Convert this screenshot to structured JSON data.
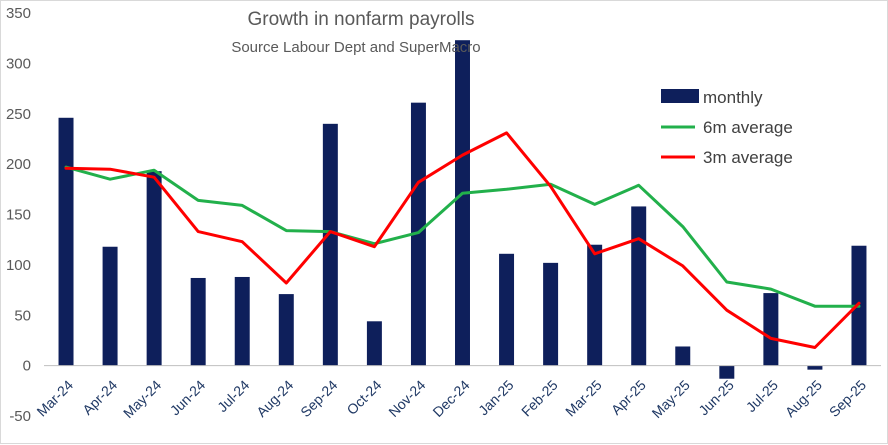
{
  "chart_data": {
    "type": "bar",
    "title": "Growth in nonfarm payrolls",
    "subtitle": "Source Labour Dept and SuperMacro",
    "categories": [
      "Mar-24",
      "Apr-24",
      "May-24",
      "Jun-24",
      "Jul-24",
      "Aug-24",
      "Sep-24",
      "Oct-24",
      "Nov-24",
      "Dec-24",
      "Jan-25",
      "Feb-25",
      "Mar-25",
      "Apr-25",
      "May-25",
      "Jun-25",
      "Jul-25",
      "Aug-25",
      "Sep-25"
    ],
    "ylim": [
      -50,
      350
    ],
    "yticks": [
      -50,
      0,
      50,
      100,
      150,
      200,
      250,
      300,
      350
    ],
    "grid": false,
    "legend_position": "right",
    "series": [
      {
        "name": "monthly",
        "kind": "bar",
        "color": "#0e1f5b",
        "values": [
          246,
          118,
          193,
          87,
          88,
          71,
          240,
          44,
          261,
          323,
          111,
          102,
          120,
          158,
          19,
          -13,
          72,
          -4,
          119
        ]
      },
      {
        "name": "6m average",
        "kind": "line",
        "color": "#22b04b",
        "values": [
          197,
          185,
          194,
          164,
          159,
          134,
          133,
          121,
          132,
          171,
          175,
          180,
          160,
          179,
          138,
          83,
          76,
          59,
          59
        ]
      },
      {
        "name": "3m average",
        "kind": "line",
        "color": "#ff0000",
        "values": [
          196,
          195,
          187,
          133,
          123,
          82,
          133,
          118,
          182,
          209,
          231,
          178,
          111,
          126,
          99,
          55,
          27,
          18,
          62
        ]
      }
    ]
  }
}
